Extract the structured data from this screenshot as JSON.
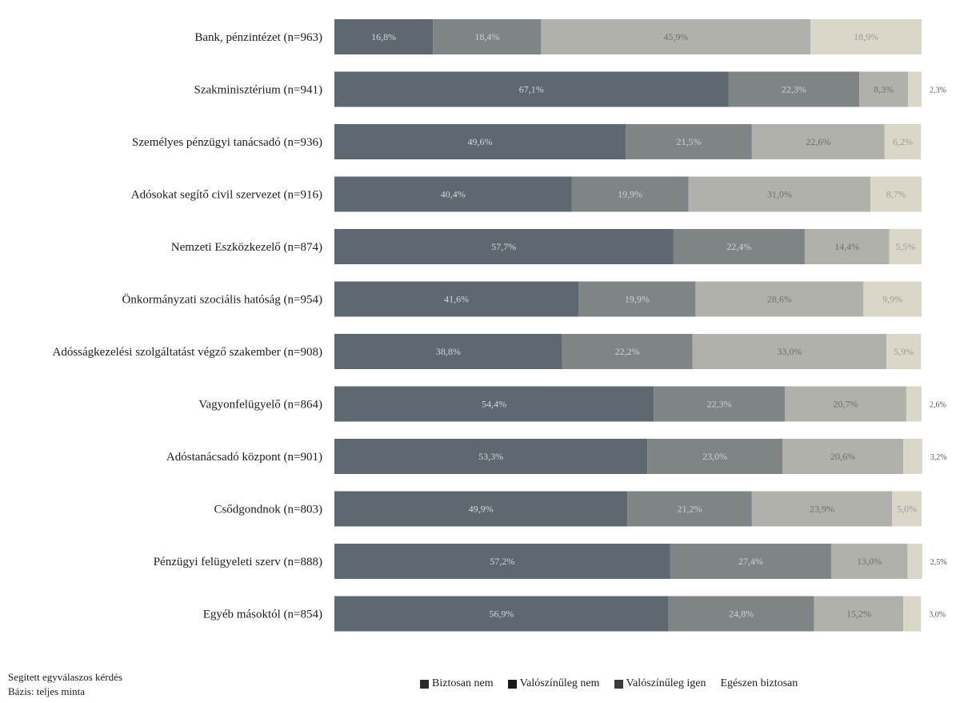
{
  "chart_data": {
    "type": "bar",
    "orientation": "horizontal",
    "stacked": true,
    "categories": [
      "Bank, pénzintézet (n=963)",
      "Szakminisztérium (n=941)",
      "Személyes pénzügyi tanácsadó (n=936)",
      "Adósokat segítő civil szervezet (n=916)",
      "Nemzeti Eszközkezelő (n=874)",
      "Önkormányzati szociális hatóság (n=954)",
      "Adósságkezelési szolgáltatást végző szakember (n=908)",
      "Vagyonfelügyelő (n=864)",
      "Adóstanácsadó központ (n=901)",
      "Csődgondnok (n=803)",
      "Pénzügyi felügyeleti szerv (n=888)",
      "Egyéb másoktól (n=854)"
    ],
    "series": [
      {
        "name": "Biztosan nem",
        "color": "#5e6870",
        "values": [
          16.8,
          67.1,
          49.6,
          40.4,
          57.7,
          41.6,
          38.8,
          54.4,
          53.3,
          49.9,
          57.2,
          56.9
        ],
        "labels": [
          "16,8%",
          "67,1%",
          "49,6%",
          "40,4%",
          "57,7%",
          "41,6%",
          "38,8%",
          "54,4%",
          "53,3%",
          "49,9%",
          "57,2%",
          "56,9%"
        ]
      },
      {
        "name": "Valószínűleg nem",
        "color": "#7f8587",
        "values": [
          18.4,
          22.3,
          21.5,
          19.9,
          22.4,
          19.9,
          22.2,
          22.3,
          23.0,
          21.2,
          27.4,
          24.8
        ],
        "labels": [
          "18,4%",
          "22,3%",
          "21,5%",
          "19,9%",
          "22,4%",
          "19,9%",
          "22,2%",
          "22,3%",
          "23,0%",
          "21,2%",
          "27,4%",
          "24,8%"
        ]
      },
      {
        "name": "Valószínűleg igen",
        "color": "#b0b1ab",
        "values": [
          45.9,
          8.3,
          22.6,
          31.0,
          14.4,
          28.6,
          33.0,
          20.7,
          20.6,
          23.9,
          13.0,
          15.2
        ],
        "labels": [
          "45,9%",
          "8,3%",
          "22,6%",
          "31,0%",
          "14,4%",
          "28,6%",
          "33,0%",
          "20,7%",
          "20,6%",
          "23,9%",
          "13,0%",
          "15,2%"
        ]
      },
      {
        "name": "Egészen biztosan",
        "color": "#dad7c9",
        "values": [
          18.9,
          2.3,
          6.2,
          8.7,
          5.5,
          9.9,
          5.9,
          2.6,
          3.2,
          5.0,
          2.5,
          3.0
        ],
        "labels": [
          "18,9%",
          "2,3%",
          "6,2%",
          "8,7%",
          "5,5%",
          "9,9%",
          "5,9%",
          "2,6%",
          "3,2%",
          "5,0%",
          "2,5%",
          "3,0%"
        ]
      }
    ],
    "xlim": [
      0,
      100
    ]
  },
  "notes": {
    "line1": "Segített egyválaszos kérdés",
    "line2": "Bázis: teljes minta"
  }
}
